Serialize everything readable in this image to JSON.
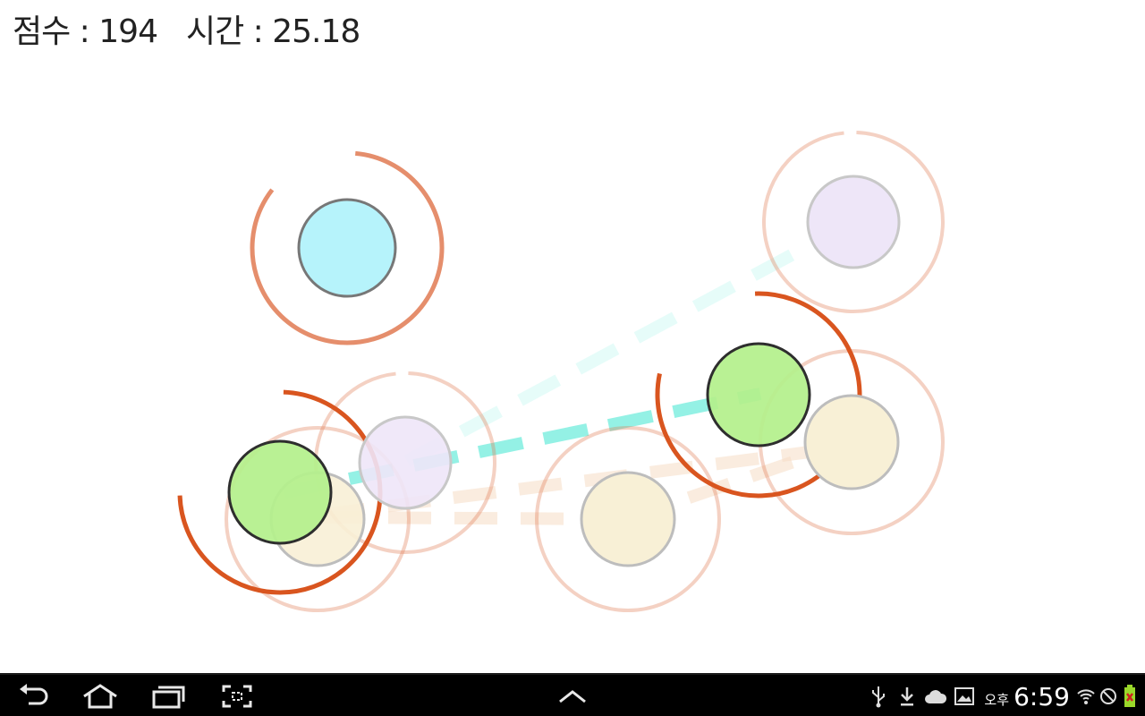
{
  "hud": {
    "score_label": "점수 : 194",
    "time_label": "시간 : 25.18"
  },
  "colors": {
    "ring": "#e07a52",
    "ring_active": "#d9551f",
    "node_cyan": "#b6f3fb",
    "node_purple": "#eee6f8",
    "node_yellow": "#f8f0d6",
    "player_green": "#b4f08c",
    "link_cyan": "#8ef0e4",
    "link_beige": "#f5dcc4",
    "navbar": "#000000"
  },
  "navbar": {
    "back_icon": "back-arrow-icon",
    "home_icon": "home-icon",
    "recent_icon": "recent-apps-icon",
    "screenshot_icon": "screenshot-icon",
    "up_icon": "chevron-up-icon",
    "status_icons": [
      "usb-icon",
      "download-icon",
      "cloud-icon",
      "image-icon",
      "wifi-icon",
      "no-signal-icon",
      "battery-icon"
    ],
    "ampm": "오후",
    "time": "6:59"
  }
}
